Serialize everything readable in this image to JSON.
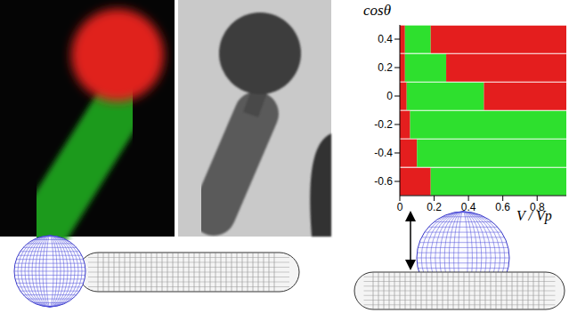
{
  "chart_data": {
    "type": "bar",
    "orientation": "horizontal",
    "stacked": true,
    "ylabel": "cosθ",
    "xlabel": "V / Vp",
    "categories": [
      "0.4",
      "0.2",
      "0",
      "-0.2",
      "-0.4",
      "-0.6"
    ],
    "series": [
      {
        "color": "#e41e1e",
        "values": [
          0.03,
          0.03,
          0.04,
          0.06,
          0.1,
          0.18
        ]
      },
      {
        "color": "#2ee02e",
        "values": [
          0.15,
          0.24,
          0.45,
          0.91,
          0.87,
          0.79
        ]
      },
      {
        "color": "#e41e1e",
        "values": [
          0.79,
          0.7,
          0.48,
          0,
          0,
          0
        ]
      }
    ],
    "xlim": [
      0,
      0.97
    ],
    "xticks": [
      0,
      0.2,
      0.4,
      0.6,
      0.8
    ]
  }
}
